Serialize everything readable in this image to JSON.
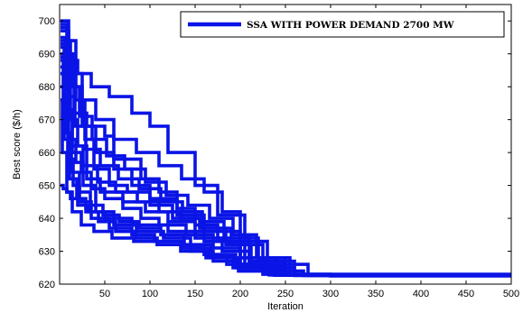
{
  "chart_data": {
    "type": "line",
    "xlabel": "Iteration",
    "ylabel": "Best score ($/h)",
    "xlim": [
      0,
      500
    ],
    "ylim": [
      620,
      705
    ],
    "x_ticks": [
      50,
      100,
      150,
      200,
      250,
      300,
      350,
      400,
      450,
      500
    ],
    "y_ticks": [
      620,
      630,
      640,
      650,
      660,
      670,
      680,
      690,
      700
    ],
    "grid": false,
    "legend_position": "top-right",
    "color": "#0a14e6",
    "series": [
      {
        "name": "SSA WITH POWER DEMAND 2700 MW",
        "x": [
          1,
          8,
          15,
          25,
          40,
          60,
          80,
          100,
          130,
          160,
          200,
          240,
          300,
          500
        ],
        "y": [
          699,
          690,
          680,
          668,
          660,
          655,
          650,
          646,
          641,
          636,
          628,
          623,
          622.5,
          622.5
        ]
      },
      {
        "x": [
          1,
          6,
          12,
          20,
          30,
          45,
          70,
          95,
          120,
          150,
          180,
          210,
          260,
          500
        ],
        "y": [
          695,
          686,
          670,
          662,
          652,
          648,
          645,
          642,
          639,
          634,
          630,
          625,
          622.8,
          622.8
        ]
      },
      {
        "x": [
          1,
          10,
          18,
          28,
          38,
          55,
          75,
          100,
          125,
          155,
          190,
          225,
          270,
          500
        ],
        "y": [
          700,
          694,
          676,
          664,
          655,
          650,
          648,
          644,
          640,
          637,
          632,
          624,
          622.6,
          622.6
        ]
      },
      {
        "x": [
          1,
          5,
          10,
          18,
          26,
          40,
          60,
          85,
          115,
          145,
          170,
          200,
          250,
          500
        ],
        "y": [
          692,
          680,
          664,
          657,
          650,
          642,
          638,
          636,
          634,
          630,
          627,
          624,
          622.7,
          622.7
        ]
      },
      {
        "x": [
          1,
          8,
          16,
          30,
          50,
          60,
          90,
          110,
          130,
          150,
          175,
          205,
          245,
          500
        ],
        "y": [
          690,
          682,
          672,
          668,
          665,
          658,
          652,
          648,
          643,
          638,
          633,
          626,
          622.9,
          622.9
        ]
      },
      {
        "x": [
          1,
          4,
          9,
          15,
          22,
          35,
          55,
          80,
          105,
          135,
          165,
          195,
          235,
          500
        ],
        "y": [
          688,
          674,
          658,
          650,
          645,
          640,
          637,
          635,
          633,
          631,
          629,
          625,
          622.8,
          622.8
        ]
      },
      {
        "x": [
          1,
          7,
          14,
          24,
          35,
          50,
          70,
          90,
          110,
          140,
          170,
          200,
          240,
          500
        ],
        "y": [
          684,
          670,
          660,
          654,
          649,
          646,
          643,
          640,
          638,
          635,
          631,
          626,
          622.9,
          622.9
        ]
      },
      {
        "x": [
          1,
          9,
          20,
          35,
          55,
          80,
          100,
          120,
          150,
          175,
          205,
          230,
          275,
          500
        ],
        "y": [
          698,
          688,
          684,
          680,
          677,
          672,
          668,
          660,
          650,
          641,
          633,
          626,
          622.6,
          622.6
        ]
      },
      {
        "x": [
          1,
          6,
          13,
          22,
          34,
          48,
          66,
          88,
          112,
          138,
          168,
          198,
          238,
          500
        ],
        "y": [
          686,
          666,
          654,
          648,
          644,
          641,
          639,
          637,
          635,
          632,
          628,
          624,
          622.7,
          622.7
        ]
      },
      {
        "x": [
          1,
          12,
          25,
          40,
          60,
          85,
          110,
          135,
          160,
          180,
          200,
          220,
          260,
          500
        ],
        "y": [
          694,
          684,
          676,
          670,
          664,
          660,
          656,
          652,
          648,
          642,
          634,
          627,
          622.6,
          622.6
        ]
      },
      {
        "x": [
          1,
          5,
          11,
          19,
          29,
          43,
          62,
          84,
          108,
          134,
          162,
          192,
          232,
          500
        ],
        "y": [
          680,
          664,
          652,
          646,
          642,
          639,
          636,
          634,
          632,
          630,
          628,
          625,
          622.8,
          622.8
        ]
      },
      {
        "x": [
          1,
          10,
          22,
          36,
          52,
          72,
          95,
          118,
          142,
          166,
          192,
          218,
          255,
          500
        ],
        "y": [
          697,
          680,
          671,
          664,
          659,
          655,
          651,
          647,
          644,
          640,
          635,
          628,
          622.7,
          622.7
        ]
      },
      {
        "x": [
          1,
          3,
          8,
          14,
          24,
          38,
          58,
          82,
          108,
          135,
          160,
          185,
          225,
          500
        ],
        "y": [
          676,
          660,
          648,
          642,
          638,
          636,
          634,
          633,
          632,
          631,
          629,
          626,
          623.0,
          623.0
        ]
      },
      {
        "x": [
          1,
          8,
          17,
          29,
          45,
          65,
          88,
          112,
          136,
          158,
          182,
          210,
          248,
          500
        ],
        "y": [
          693,
          677,
          668,
          661,
          656,
          652,
          649,
          645,
          642,
          639,
          634,
          627,
          622.8,
          622.8
        ]
      },
      {
        "x": [
          1,
          6,
          14,
          26,
          42,
          62,
          86,
          110,
          134,
          158,
          184,
          212,
          250,
          500
        ],
        "y": [
          689,
          673,
          662,
          656,
          651,
          648,
          645,
          642,
          640,
          637,
          632,
          626,
          622.7,
          622.7
        ]
      },
      {
        "x": [
          1,
          2,
          4,
          8,
          12,
          20,
          32,
          50,
          80,
          120,
          160,
          200,
          250,
          500
        ],
        "y": [
          650,
          650,
          649,
          648,
          646,
          644,
          642,
          640,
          638,
          636,
          633,
          628,
          622.8,
          622.8
        ]
      }
    ]
  }
}
